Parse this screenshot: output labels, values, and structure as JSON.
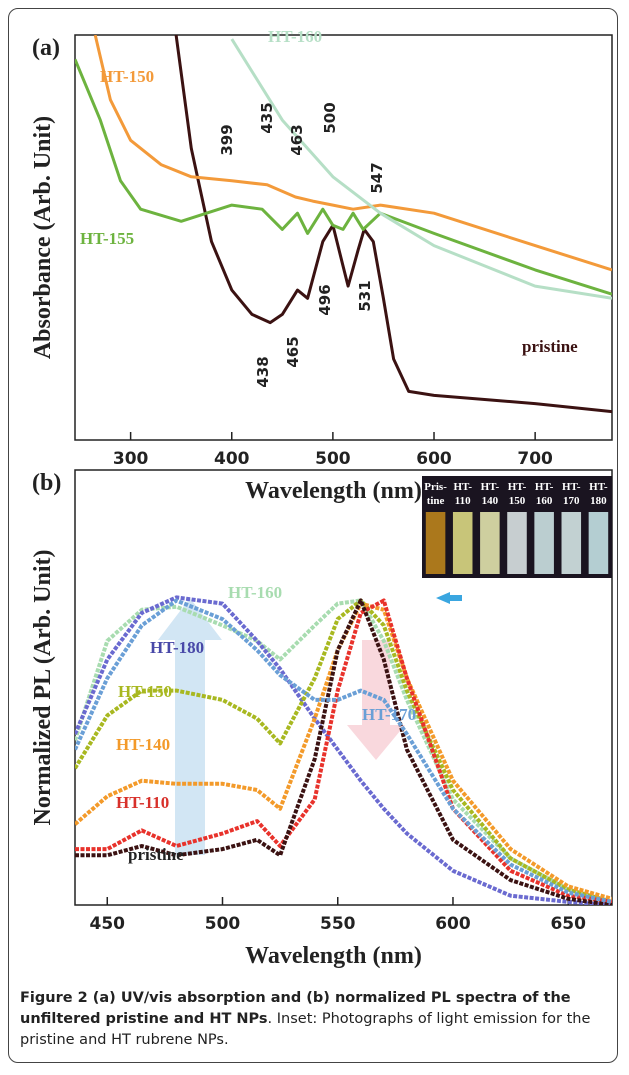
{
  "chart_data": [
    {
      "type": "line",
      "panel": "(a)",
      "y_label": "Absorbance (Arb. Unit)",
      "x_label": "Wavelength (nm)",
      "xlim": [
        245,
        776
      ],
      "ylim": [
        0,
        1
      ],
      "xticks": [
        300,
        400,
        500,
        600,
        700
      ],
      "series": [
        {
          "name": "pristine",
          "color": "#3b1212",
          "x": [
            345,
            360,
            380,
            400,
            420,
            438,
            450,
            465,
            475,
            490,
            500,
            510,
            515,
            525,
            531,
            540,
            550,
            560,
            575,
            600,
            650,
            700,
            776
          ],
          "values": [
            1.0,
            0.72,
            0.49,
            0.37,
            0.31,
            0.29,
            0.31,
            0.37,
            0.35,
            0.49,
            0.53,
            0.43,
            0.38,
            0.47,
            0.52,
            0.49,
            0.35,
            0.2,
            0.12,
            0.11,
            0.1,
            0.09,
            0.07
          ]
        },
        {
          "name": "HT-150",
          "color": "#f39a3a",
          "x": [
            265,
            280,
            300,
            330,
            360,
            400,
            435,
            463,
            480,
            500,
            520,
            547,
            600,
            700,
            776
          ],
          "values": [
            1.0,
            0.84,
            0.74,
            0.68,
            0.65,
            0.64,
            0.63,
            0.6,
            0.59,
            0.58,
            0.57,
            0.58,
            0.56,
            0.48,
            0.42
          ]
        },
        {
          "name": "HT-155",
          "color": "#6db33f",
          "x": [
            245,
            270,
            290,
            310,
            350,
            400,
            430,
            450,
            465,
            475,
            490,
            500,
            510,
            520,
            530,
            547,
            600,
            700,
            776
          ],
          "values": [
            0.94,
            0.79,
            0.64,
            0.57,
            0.54,
            0.58,
            0.57,
            0.52,
            0.56,
            0.51,
            0.57,
            0.53,
            0.52,
            0.56,
            0.52,
            0.56,
            0.51,
            0.42,
            0.36
          ]
        },
        {
          "name": "HT-160",
          "color": "#b6dfc6",
          "x": [
            400,
            450,
            500,
            547,
            600,
            650,
            700,
            776
          ],
          "values": [
            0.99,
            0.79,
            0.65,
            0.56,
            0.48,
            0.43,
            0.38,
            0.35
          ]
        }
      ],
      "annotations": [
        "399",
        "435",
        "463",
        "500",
        "547",
        "438",
        "465",
        "496",
        "531"
      ]
    },
    {
      "type": "line",
      "panel": "(b)",
      "y_label": "Normalized PL (Arb. Unit)",
      "x_label": "Wavelength (nm)",
      "xlim": [
        436,
        669
      ],
      "ylim": [
        0,
        1.4
      ],
      "xticks": [
        450,
        500,
        550,
        600,
        650
      ],
      "x": [
        436,
        450,
        465,
        480,
        500,
        515,
        525,
        540,
        550,
        560,
        570,
        580,
        600,
        625,
        650,
        669
      ],
      "series": [
        {
          "name": "HT-160",
          "color": "#a8dcb0",
          "values": [
            0.53,
            0.85,
            0.95,
            0.96,
            0.9,
            0.85,
            0.79,
            0.9,
            0.97,
            0.98,
            0.85,
            0.66,
            0.34,
            0.15,
            0.05,
            0.01
          ]
        },
        {
          "name": "HT-180",
          "color": "#6a6ad0",
          "values": [
            0.55,
            0.79,
            0.94,
            0.99,
            0.97,
            0.85,
            0.76,
            0.6,
            0.5,
            0.4,
            0.31,
            0.23,
            0.11,
            0.03,
            0.01,
            0
          ]
        },
        {
          "name": "HT-150",
          "color": "#a8b820",
          "values": [
            0.44,
            0.61,
            0.69,
            0.69,
            0.66,
            0.6,
            0.52,
            0.73,
            0.92,
            0.98,
            0.9,
            0.69,
            0.37,
            0.15,
            0.05,
            0.01
          ]
        },
        {
          "name": "HT-140",
          "color": "#f39a2a",
          "values": [
            0.26,
            0.35,
            0.4,
            0.39,
            0.39,
            0.37,
            0.31,
            0.6,
            0.82,
            0.97,
            0.95,
            0.73,
            0.4,
            0.18,
            0.06,
            0.02
          ]
        },
        {
          "name": "HT-110",
          "color": "#e8322b",
          "values": [
            0.18,
            0.18,
            0.24,
            0.19,
            0.23,
            0.27,
            0.19,
            0.34,
            0.69,
            0.94,
            0.98,
            0.73,
            0.31,
            0.11,
            0.03,
            0.01
          ]
        },
        {
          "name": "pristine",
          "color": "#3b1212",
          "values": [
            0.16,
            0.16,
            0.19,
            0.16,
            0.18,
            0.21,
            0.16,
            0.47,
            0.82,
            0.98,
            0.79,
            0.5,
            0.21,
            0.08,
            0.02,
            0
          ]
        },
        {
          "name": "HT-170",
          "color": "#6a9fd6",
          "values": [
            0.5,
            0.73,
            0.9,
            0.98,
            0.92,
            0.82,
            0.74,
            0.66,
            0.66,
            0.69,
            0.66,
            0.55,
            0.31,
            0.13,
            0.04,
            0.01
          ]
        }
      ],
      "inset_labels": [
        [
          "Pris-",
          "tine"
        ],
        [
          "HT-",
          "110"
        ],
        [
          "HT-",
          "140"
        ],
        [
          "HT-",
          "150"
        ],
        [
          "HT-",
          "160"
        ],
        [
          "HT-",
          "170"
        ],
        [
          "HT-",
          "180"
        ]
      ]
    }
  ],
  "caption": {
    "title": "Figure 2 (a) UV/vis absorption and (b) normalized PL spectra of the unfiltered pristine and HT NPs",
    "text": ". Inset: Photographs of light emission for the pristine and HT rubrene NPs."
  }
}
